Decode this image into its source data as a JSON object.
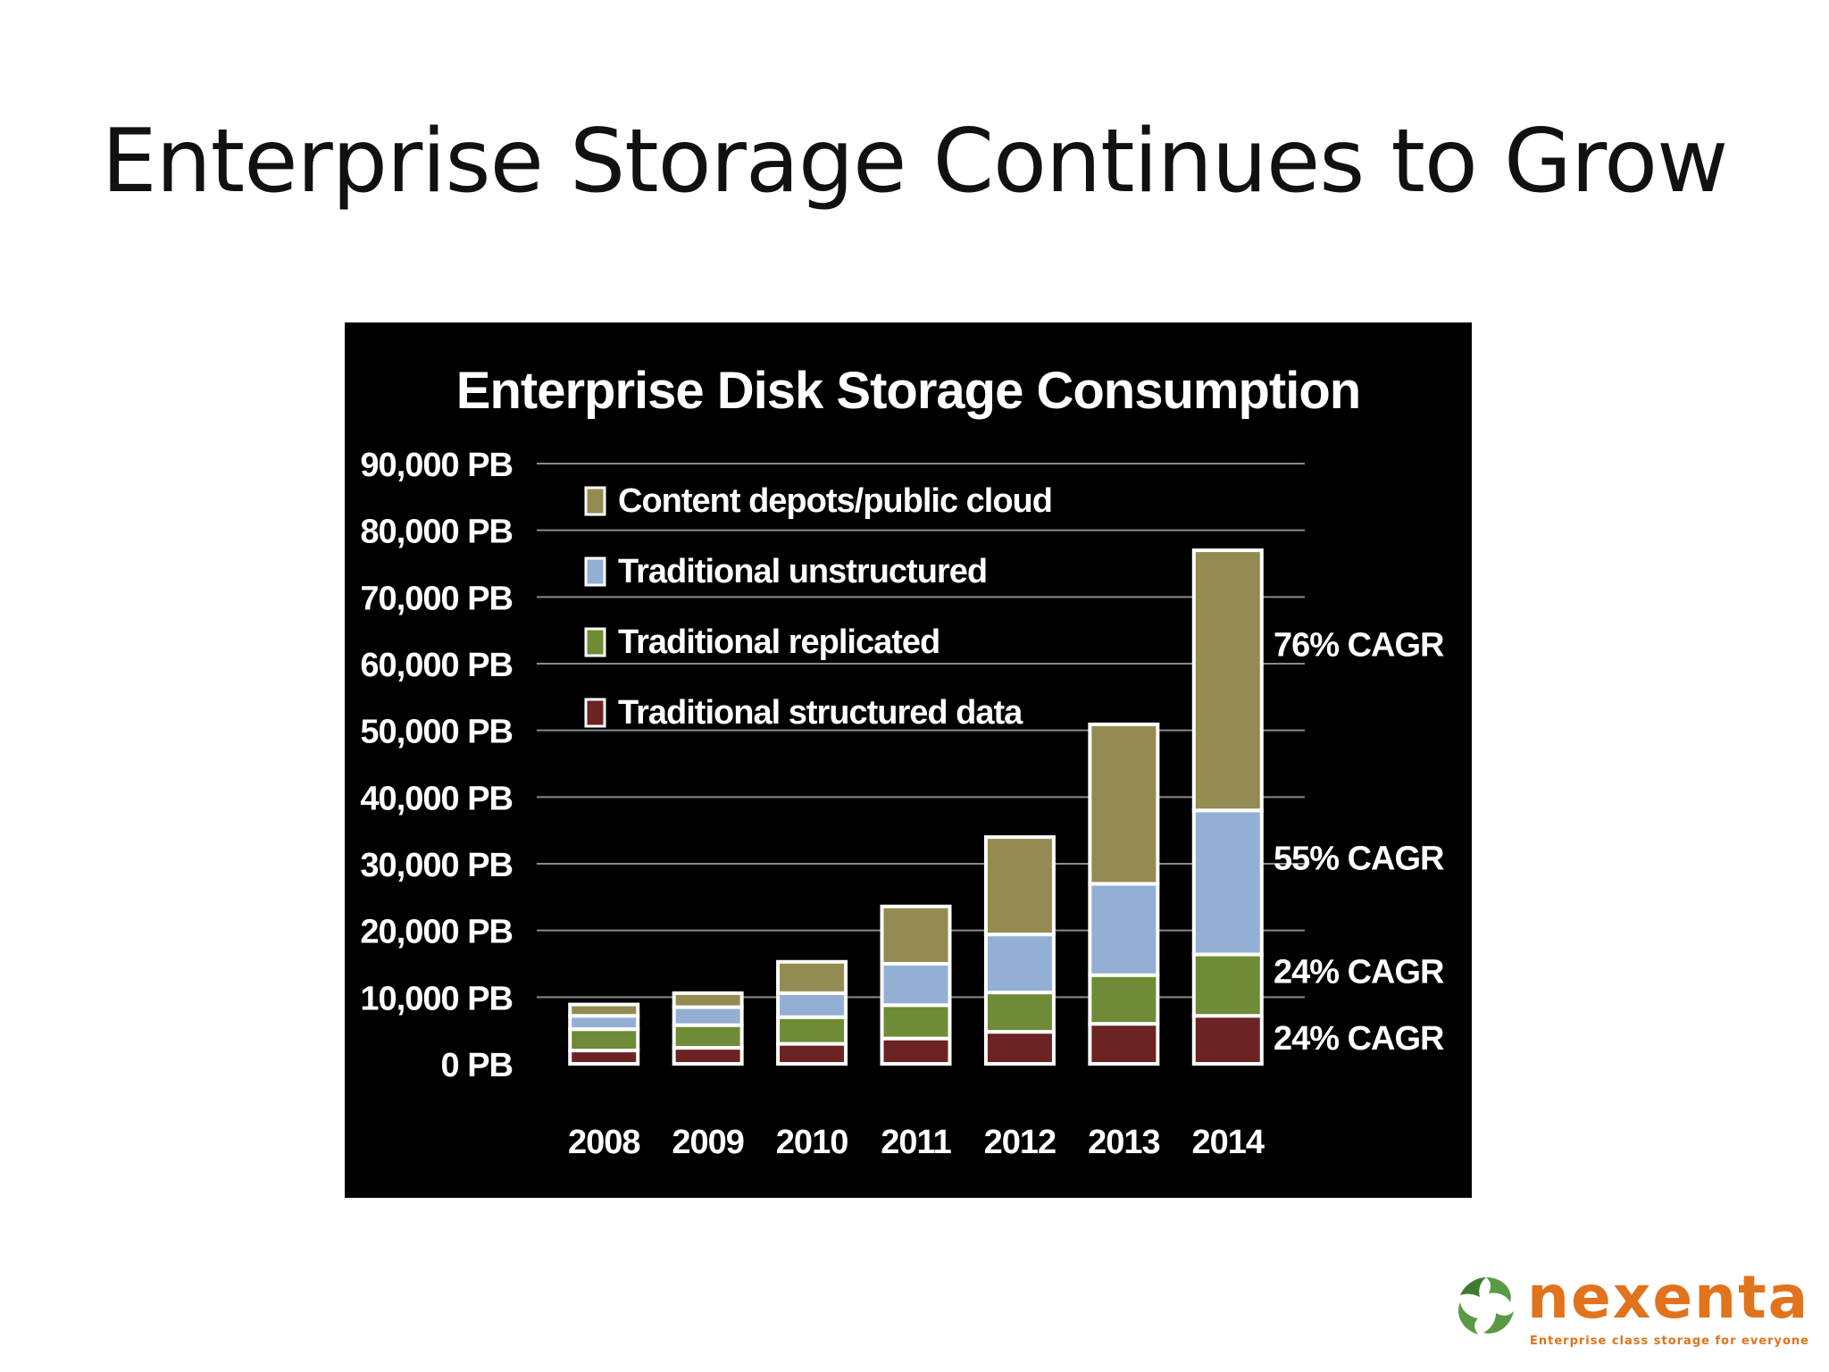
{
  "slide": {
    "title": "Enterprise Storage Continues to Grow"
  },
  "logo": {
    "text": "nexenta",
    "tagline": "Enterprise class storage for everyone"
  },
  "chart_data": {
    "type": "bar",
    "stacked": true,
    "title": "Enterprise Disk Storage Consumption",
    "xlabel": "",
    "ylabel": "",
    "ylim": [
      0,
      90000
    ],
    "grid": true,
    "legend_position": "top-left",
    "background": "#000000",
    "categories": [
      "2008",
      "2009",
      "2010",
      "2011",
      "2012",
      "2013",
      "2014"
    ],
    "y_ticks": [
      "0 PB",
      "10,000 PB",
      "20,000 PB",
      "30,000 PB",
      "40,000 PB",
      "50,000 PB",
      "60,000 PB",
      "70,000 PB",
      "80,000 PB",
      "90,000 PB"
    ],
    "series": [
      {
        "name": "Traditional structured data",
        "color": "#6b2323",
        "values": [
          2000,
          2400,
          3000,
          3800,
          4800,
          6000,
          7200
        ]
      },
      {
        "name": "Traditional replicated",
        "color": "#6f8b35",
        "values": [
          3200,
          3400,
          4000,
          5000,
          5900,
          7300,
          9200
        ]
      },
      {
        "name": "Traditional unstructured",
        "color": "#93afd3",
        "values": [
          2000,
          2700,
          3600,
          6200,
          8700,
          13700,
          21600
        ]
      },
      {
        "name": "Content depots/public cloud",
        "color": "#938b52",
        "values": [
          1700,
          2100,
          4700,
          8600,
          14600,
          23900,
          39000
        ]
      }
    ],
    "legend_order": [
      "Content depots/public cloud",
      "Traditional unstructured",
      "Traditional replicated",
      "Traditional structured data"
    ],
    "annotations": [
      {
        "text": "76% CAGR",
        "y": 63000
      },
      {
        "text": "55% CAGR",
        "y": 31000
      },
      {
        "text": "24% CAGR",
        "y": 14000
      },
      {
        "text": "24% CAGR",
        "y": 4000
      }
    ]
  }
}
